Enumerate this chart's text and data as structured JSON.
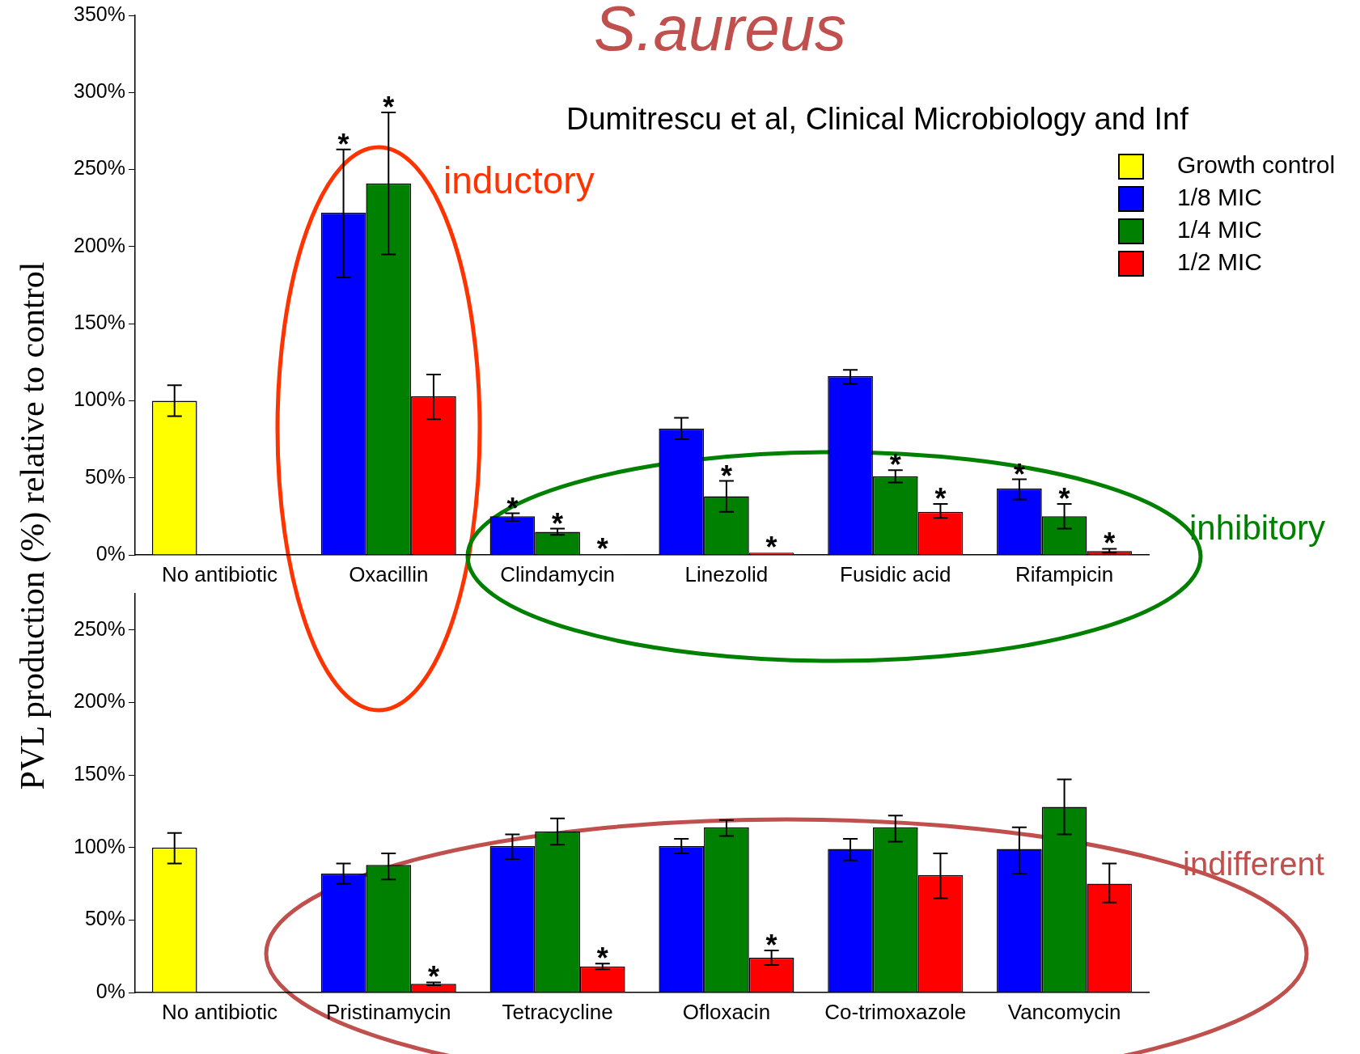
{
  "chart_data": [
    {
      "type": "bar",
      "title": "S.aureus",
      "subtitle": "Dumitrescu et al, Clinical Microbiology and Inf",
      "ylabel": "PVL production (%) relative to control",
      "categories": [
        "No antibiotic",
        "Oxacillin",
        "Clindamycin",
        "Linezolid",
        "Fusidic acid",
        "Rifampicin"
      ],
      "series": [
        {
          "name": "Growth control",
          "color": "#ffff00",
          "values": [
            100,
            null,
            null,
            null,
            null,
            null
          ],
          "errors": [
            [
              90,
              110
            ],
            null,
            null,
            null,
            null,
            null
          ]
        },
        {
          "name": "1/8 MIC",
          "color": "#0000ff",
          "values": [
            null,
            222,
            25,
            82,
            116,
            43
          ],
          "errors": [
            null,
            [
              180,
              263
            ],
            [
              22,
              27
            ],
            [
              75,
              89
            ],
            [
              111,
              120
            ],
            [
              36,
              49
            ]
          ],
          "value_labels": [
            null,
            "*",
            "*",
            null,
            null,
            "*"
          ]
        },
        {
          "name": "1/4 MIC",
          "color": "#008000",
          "values": [
            null,
            241,
            15,
            38,
            51,
            25
          ],
          "errors": [
            null,
            [
              195,
              287
            ],
            [
              13,
              17
            ],
            [
              28,
              48
            ],
            [
              47,
              55
            ],
            [
              17,
              33
            ]
          ],
          "value_labels": [
            null,
            "*",
            "*",
            "*",
            "*",
            "*"
          ]
        },
        {
          "name": "1/2 MIC",
          "color": "#ff0000",
          "values": [
            null,
            103,
            0.5,
            1.5,
            28,
            2.5
          ],
          "errors": [
            null,
            [
              88,
              117
            ],
            null,
            null,
            [
              24,
              33
            ],
            [
              1.5,
              4
            ]
          ],
          "value_labels": [
            null,
            null,
            "*",
            "*",
            "*",
            "*"
          ]
        }
      ],
      "ylim": [
        0,
        350
      ],
      "yticks": [
        {
          "value": 0,
          "label": "0%"
        },
        {
          "value": 50,
          "label": "50%"
        },
        {
          "value": 100,
          "label": "100%"
        },
        {
          "value": 150,
          "label": "150%"
        },
        {
          "value": 200,
          "label": "200%"
        },
        {
          "value": 250,
          "label": "250%"
        },
        {
          "value": 300,
          "label": "300%"
        },
        {
          "value": 350,
          "label": "350%"
        }
      ],
      "legend": "top right",
      "grid": false,
      "annotations": [
        "inductory",
        "inhibitory"
      ]
    },
    {
      "type": "bar",
      "categories": [
        "No antibiotic",
        "Pristinamycin",
        "Tetracycline",
        "Ofloxacin",
        "Co-trimoxazole",
        "Vancomycin"
      ],
      "series": [
        {
          "color": "#ffff00",
          "values": [
            100,
            null,
            null,
            null,
            null,
            null
          ],
          "errors": [
            [
              89,
              110
            ],
            null,
            null,
            null,
            null,
            null
          ]
        },
        {
          "color": "#0000ff",
          "values": [
            null,
            82,
            101,
            101,
            99,
            99
          ],
          "errors": [
            null,
            [
              75,
              89
            ],
            [
              92,
              109
            ],
            [
              96,
              106
            ],
            [
              91,
              106
            ],
            [
              82,
              114
            ]
          ]
        },
        {
          "color": "#008000",
          "values": [
            null,
            88,
            111,
            114,
            114,
            128
          ],
          "errors": [
            null,
            [
              78,
              96
            ],
            [
              102,
              120
            ],
            [
              108,
              119
            ],
            [
              104,
              122
            ],
            [
              109,
              147
            ]
          ]
        },
        {
          "color": "#ff0000",
          "values": [
            null,
            6,
            18,
            24,
            81,
            75
          ],
          "errors": [
            null,
            [
              5,
              7
            ],
            [
              16,
              20
            ],
            [
              19,
              29
            ],
            [
              65,
              96
            ],
            [
              62,
              89
            ]
          ],
          "value_labels": [
            null,
            "*",
            "*",
            "*",
            null,
            null
          ]
        }
      ],
      "ylim": [
        0,
        275
      ],
      "yticks": [
        {
          "value": 0,
          "label": "0%"
        },
        {
          "value": 50,
          "label": "50%"
        },
        {
          "value": 100,
          "label": "100%"
        },
        {
          "value": 150,
          "label": "150%"
        },
        {
          "value": 200,
          "label": "200%"
        },
        {
          "value": 250,
          "label": "250%"
        }
      ],
      "grid": false,
      "annotations": [
        "indifferent"
      ]
    }
  ]
}
